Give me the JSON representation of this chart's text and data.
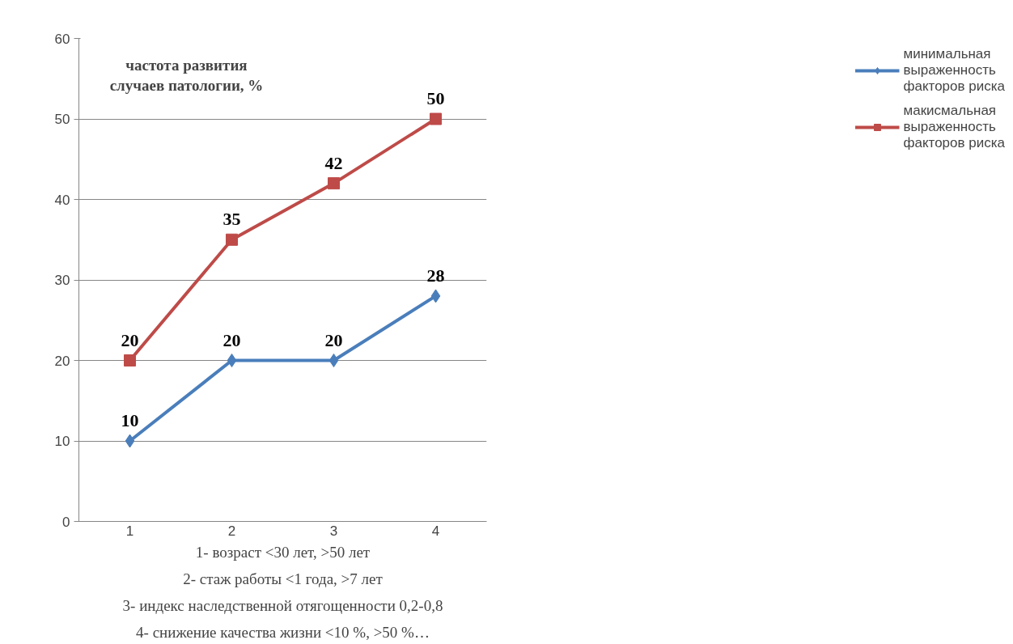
{
  "chart_data": {
    "type": "line",
    "ylabel": "частота развития случаев патологии, %",
    "categories": [
      "1",
      "2",
      "3",
      "4"
    ],
    "series": [
      {
        "name": "минимальная выраженность факторов риска",
        "color": "#4a7ebb",
        "marker": "diamond",
        "values": [
          10,
          20,
          20,
          28
        ]
      },
      {
        "name": "макисмальная выраженность факторов риска",
        "color": "#be4b48",
        "marker": "square",
        "values": [
          20,
          35,
          42,
          50
        ]
      }
    ],
    "ylim": [
      0,
      60
    ],
    "yticks": [
      0,
      10,
      20,
      30,
      40,
      50,
      60
    ],
    "grid": "y",
    "legend": "right",
    "data_labels": true,
    "annotations": [
      "1- возраст <30 лет, >50 лет",
      "2- стаж работы <1 года, >7 лет",
      "3- индекс наследственной отягощенности 0,2-0,8",
      "4- снижение качества жизни <10 %, >50 %…"
    ]
  }
}
